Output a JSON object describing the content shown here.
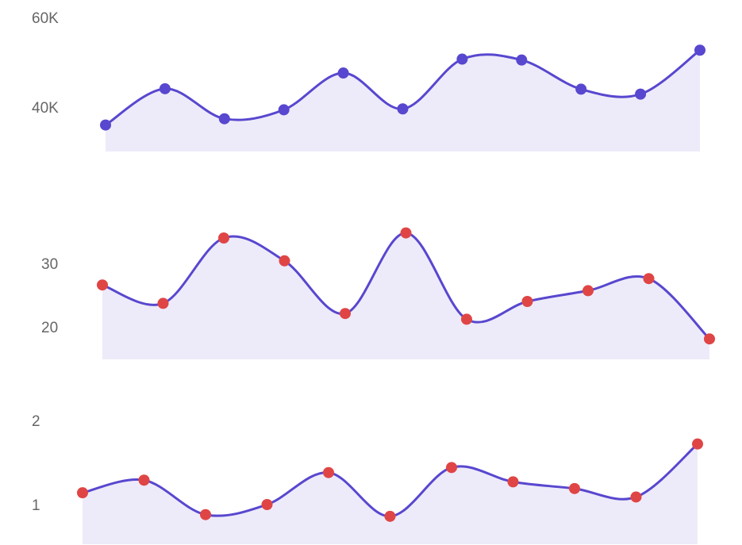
{
  "colors": {
    "line": "#5847cf",
    "area": "#edebf9",
    "marker_top": "#5847cf",
    "marker_other": "#e04545",
    "tick_text": "#666666"
  },
  "chart_data": [
    {
      "type": "area",
      "x": [
        1,
        2,
        3,
        4,
        5,
        6,
        7,
        8,
        9,
        10,
        11,
        12
      ],
      "values": [
        36000,
        44100,
        37400,
        39400,
        47600,
        39600,
        50700,
        50500,
        44000,
        42900,
        52700,
        null
      ],
      "y_ticks": [
        "40K",
        "60K"
      ],
      "y_tick_values": [
        40000,
        60000
      ],
      "grid": false,
      "legend": "none"
    },
    {
      "type": "area",
      "x": [
        1,
        2,
        3,
        4,
        5,
        6,
        7,
        8,
        9,
        10,
        11,
        12
      ],
      "values": [
        26.6,
        23.7,
        34.0,
        30.4,
        22.1,
        34.8,
        21.2,
        24.0,
        25.7,
        27.6,
        18.1,
        null
      ],
      "y_ticks": [
        "20",
        "30"
      ],
      "y_tick_values": [
        20,
        30
      ],
      "grid": false,
      "legend": "none"
    },
    {
      "type": "area",
      "x": [
        1,
        2,
        3,
        4,
        5,
        6,
        7,
        8,
        9,
        10,
        11,
        12
      ],
      "values": [
        1.14,
        1.29,
        0.88,
        1.0,
        1.38,
        0.86,
        1.44,
        1.27,
        1.19,
        1.09,
        1.72,
        null
      ],
      "y_ticks": [
        "1",
        "2"
      ],
      "y_tick_values": [
        1,
        2
      ],
      "grid": false,
      "legend": "none"
    }
  ]
}
